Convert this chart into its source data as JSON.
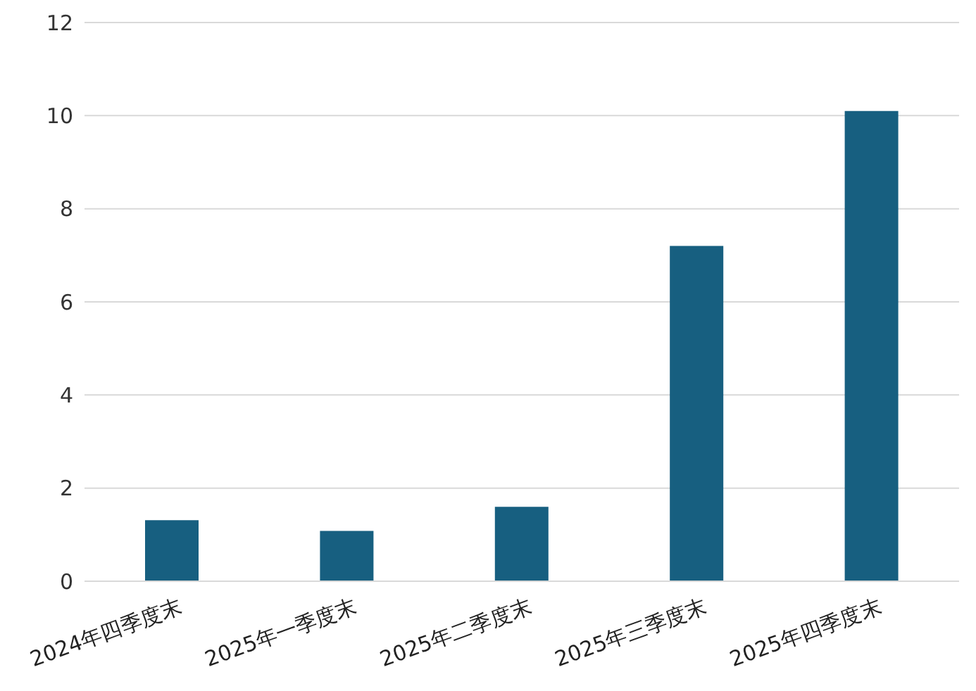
{
  "chart_data": {
    "type": "bar",
    "categories": [
      "2024年四季度末",
      "2025年一季度末",
      "2025年二季度末",
      "2025年三季度末",
      "2025年四季度末"
    ],
    "values": [
      1.31,
      1.08,
      1.6,
      7.2,
      10.1
    ],
    "color": "#175f80",
    "ylim": [
      0,
      12
    ],
    "yticks": [
      0,
      2,
      4,
      6,
      8,
      10,
      12
    ],
    "grid": "y"
  }
}
